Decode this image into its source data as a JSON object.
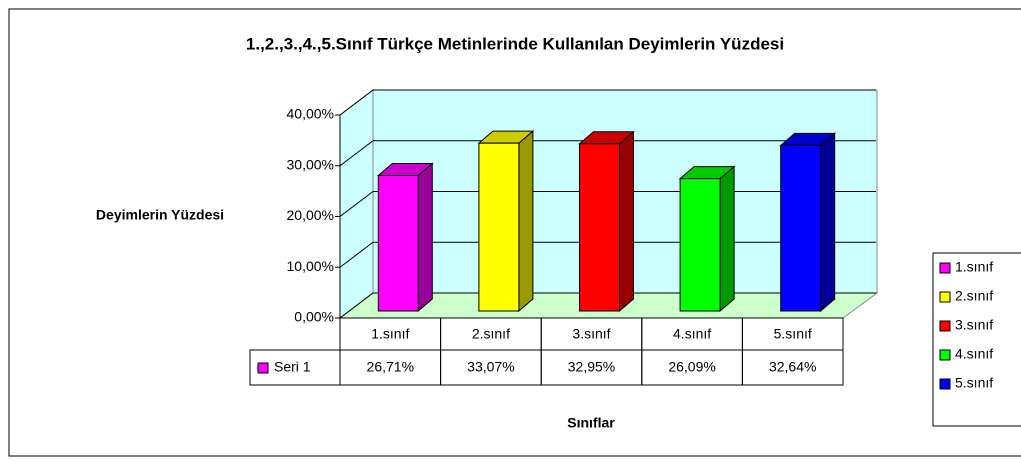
{
  "chart_data": {
    "type": "bar",
    "title": "1.,2.,3.,4.,5.Sınıf Türkçe Metinlerinde Kullanılan Deyimlerin Yüzdesi",
    "y_label": "Deyimlerin Yüzdesi",
    "x_label": "Sınıflar",
    "categories": [
      "1.sınıf",
      "2.sınıf",
      "3.sınıf",
      "4.sınıf",
      "5.sınıf"
    ],
    "colors": [
      "#ff00ff",
      "#ffff00",
      "#ff0000",
      "#00ff00",
      "#0000ff"
    ],
    "series": [
      {
        "name": "Seri 1",
        "values": [
          26.71,
          33.07,
          32.95,
          26.09,
          32.64
        ],
        "value_labels": [
          "26,71%",
          "33,07%",
          "32,95%",
          "26,09%",
          "32,64%"
        ]
      }
    ],
    "ylim": [
      0,
      40
    ],
    "yticks": [
      {
        "value": 0,
        "label": "0,00%"
      },
      {
        "value": 10,
        "label": "10,00%"
      },
      {
        "value": 20,
        "label": "20,00%"
      },
      {
        "value": 30,
        "label": "30,00%"
      },
      {
        "value": 40,
        "label": "40,00%"
      }
    ],
    "grid": true,
    "legend": "right"
  }
}
